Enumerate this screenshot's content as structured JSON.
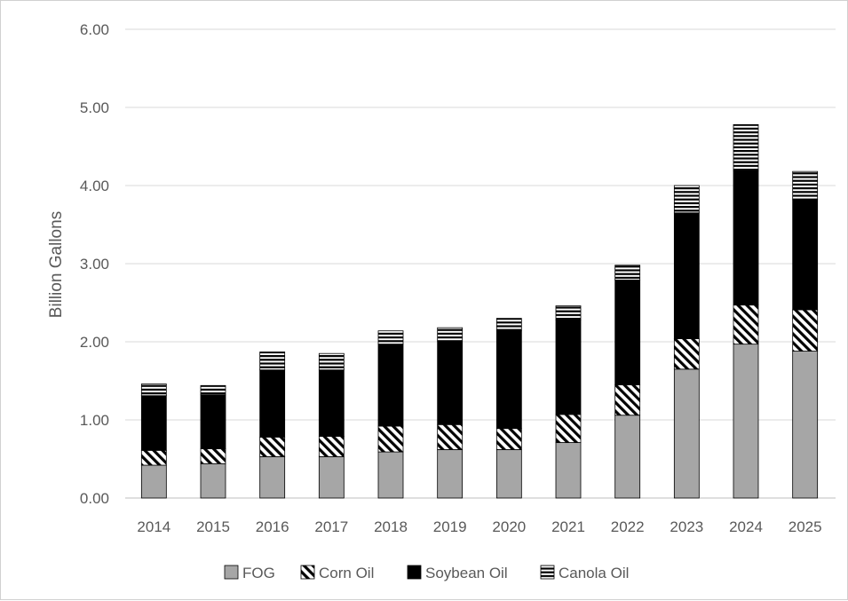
{
  "chart_data": {
    "type": "bar",
    "stacked": true,
    "title": "",
    "xlabel": "",
    "ylabel": "Billion Gallons",
    "ylim": [
      0,
      6
    ],
    "yticks": [
      "0.00",
      "1.00",
      "2.00",
      "3.00",
      "4.00",
      "5.00",
      "6.00"
    ],
    "grid": true,
    "legend_position": "bottom",
    "categories": [
      "2014",
      "2015",
      "2016",
      "2017",
      "2018",
      "2019",
      "2020",
      "2021",
      "2022",
      "2023",
      "2024",
      "2025"
    ],
    "series": [
      {
        "name": "FOG",
        "pattern": "solid-gray",
        "color": "#a6a6a6",
        "values": [
          0.42,
          0.44,
          0.53,
          0.53,
          0.59,
          0.62,
          0.62,
          0.71,
          1.06,
          1.65,
          1.97,
          1.88
        ]
      },
      {
        "name": "Corn Oil",
        "pattern": "diagonal-hatch",
        "color": "#000000",
        "values": [
          0.19,
          0.19,
          0.25,
          0.26,
          0.33,
          0.32,
          0.27,
          0.36,
          0.39,
          0.39,
          0.5,
          0.53
        ]
      },
      {
        "name": "Soybean Oil",
        "pattern": "solid-black",
        "color": "#000000",
        "values": [
          0.7,
          0.69,
          0.86,
          0.85,
          1.05,
          1.07,
          1.25,
          1.21,
          1.34,
          1.61,
          1.72,
          1.41
        ]
      },
      {
        "name": "Canola Oil",
        "pattern": "horizontal-lines",
        "color": "#000000",
        "values": [
          0.15,
          0.12,
          0.23,
          0.21,
          0.17,
          0.17,
          0.16,
          0.18,
          0.19,
          0.35,
          0.59,
          0.36
        ]
      }
    ]
  }
}
